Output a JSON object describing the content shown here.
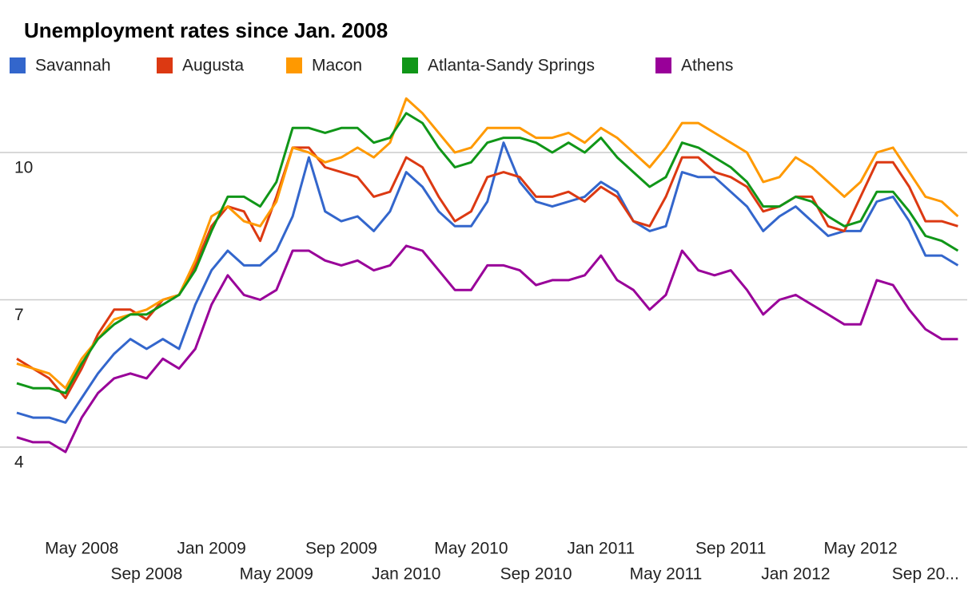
{
  "chart_data": {
    "type": "line",
    "title": "Unemployment rates since Jan. 2008",
    "categories": [
      null,
      null,
      null,
      null,
      "May 2008",
      null,
      null,
      null,
      "Sep 2008",
      null,
      null,
      null,
      "Jan 2009",
      null,
      null,
      null,
      "May 2009",
      null,
      null,
      null,
      "Sep 2009",
      null,
      null,
      null,
      "Jan 2010",
      null,
      null,
      null,
      "May 2010",
      null,
      null,
      null,
      "Sep 2010",
      null,
      null,
      null,
      "Jan 2011",
      null,
      null,
      null,
      "May 2011",
      null,
      null,
      null,
      "Sep 2011",
      null,
      null,
      null,
      "Jan 2012",
      null,
      null,
      null,
      "May 2012",
      null,
      null,
      null,
      "Sep 20...",
      null,
      null
    ],
    "ylim": [
      2.5,
      11.5
    ],
    "yticks": [
      4,
      7,
      10
    ],
    "grid": true,
    "series": [
      {
        "name": "Savannah",
        "color": "#3366cc",
        "values": [
          4.7,
          4.6,
          4.6,
          4.5,
          5.0,
          5.5,
          5.9,
          6.2,
          6.0,
          6.2,
          6.0,
          6.9,
          7.6,
          8.0,
          7.7,
          7.7,
          8.0,
          8.7,
          9.9,
          8.8,
          8.6,
          8.7,
          8.4,
          8.8,
          9.6,
          9.3,
          8.8,
          8.5,
          8.5,
          9.0,
          10.2,
          9.4,
          9.0,
          8.9,
          9.0,
          9.1,
          9.4,
          9.2,
          8.6,
          8.4,
          8.5,
          9.6,
          9.5,
          9.5,
          9.2,
          8.9,
          8.4,
          8.7,
          8.9,
          8.6,
          8.3,
          8.4,
          8.4,
          9.0,
          9.1,
          8.6,
          7.9,
          7.9,
          7.7
        ]
      },
      {
        "name": "Augusta",
        "color": "#dc3912",
        "values": [
          5.8,
          5.6,
          5.4,
          5.0,
          5.6,
          6.3,
          6.8,
          6.8,
          6.6,
          7.0,
          7.1,
          7.7,
          8.5,
          8.9,
          8.8,
          8.2,
          9.1,
          10.1,
          10.1,
          9.7,
          9.6,
          9.5,
          9.1,
          9.2,
          9.9,
          9.7,
          9.1,
          8.6,
          8.8,
          9.5,
          9.6,
          9.5,
          9.1,
          9.1,
          9.2,
          9.0,
          9.3,
          9.1,
          8.6,
          8.5,
          9.1,
          9.9,
          9.9,
          9.6,
          9.5,
          9.3,
          8.8,
          8.9,
          9.1,
          9.1,
          8.5,
          8.4,
          9.1,
          9.8,
          9.8,
          9.3,
          8.6,
          8.6,
          8.5
        ]
      },
      {
        "name": "Macon",
        "color": "#ff9900",
        "values": [
          5.7,
          5.6,
          5.5,
          5.2,
          5.8,
          6.2,
          6.6,
          6.7,
          6.8,
          7.0,
          7.1,
          7.8,
          8.7,
          8.9,
          8.6,
          8.5,
          9.0,
          10.1,
          10.0,
          9.8,
          9.9,
          10.1,
          9.9,
          10.2,
          11.1,
          10.8,
          10.4,
          10.0,
          10.1,
          10.5,
          10.5,
          10.5,
          10.3,
          10.3,
          10.4,
          10.2,
          10.5,
          10.3,
          10.0,
          9.7,
          10.1,
          10.6,
          10.6,
          10.4,
          10.2,
          10.0,
          9.4,
          9.5,
          9.9,
          9.7,
          9.4,
          9.1,
          9.4,
          10.0,
          10.1,
          9.6,
          9.1,
          9.0,
          8.7
        ]
      },
      {
        "name": "Atlanta-Sandy Springs",
        "color": "#109618",
        "values": [
          5.3,
          5.2,
          5.2,
          5.1,
          5.7,
          6.2,
          6.5,
          6.7,
          6.7,
          6.9,
          7.1,
          7.6,
          8.4,
          9.1,
          9.1,
          8.9,
          9.4,
          10.5,
          10.5,
          10.4,
          10.5,
          10.5,
          10.2,
          10.3,
          10.8,
          10.6,
          10.1,
          9.7,
          9.8,
          10.2,
          10.3,
          10.3,
          10.2,
          10.0,
          10.2,
          10.0,
          10.3,
          9.9,
          9.6,
          9.3,
          9.5,
          10.2,
          10.1,
          9.9,
          9.7,
          9.4,
          8.9,
          8.9,
          9.1,
          9.0,
          8.7,
          8.5,
          8.6,
          9.2,
          9.2,
          8.8,
          8.3,
          8.2,
          8.0
        ]
      },
      {
        "name": "Athens",
        "color": "#990099",
        "values": [
          4.2,
          4.1,
          4.1,
          3.9,
          4.6,
          5.1,
          5.4,
          5.5,
          5.4,
          5.8,
          5.6,
          6.0,
          6.9,
          7.5,
          7.1,
          7.0,
          7.2,
          8.0,
          8.0,
          7.8,
          7.7,
          7.8,
          7.6,
          7.7,
          8.1,
          8.0,
          7.6,
          7.2,
          7.2,
          7.7,
          7.7,
          7.6,
          7.3,
          7.4,
          7.4,
          7.5,
          7.9,
          7.4,
          7.2,
          6.8,
          7.1,
          8.0,
          7.6,
          7.5,
          7.6,
          7.2,
          6.7,
          7.0,
          7.1,
          6.9,
          6.7,
          6.5,
          6.5,
          7.4,
          7.3,
          6.8,
          6.4,
          6.2,
          6.2
        ]
      }
    ]
  }
}
